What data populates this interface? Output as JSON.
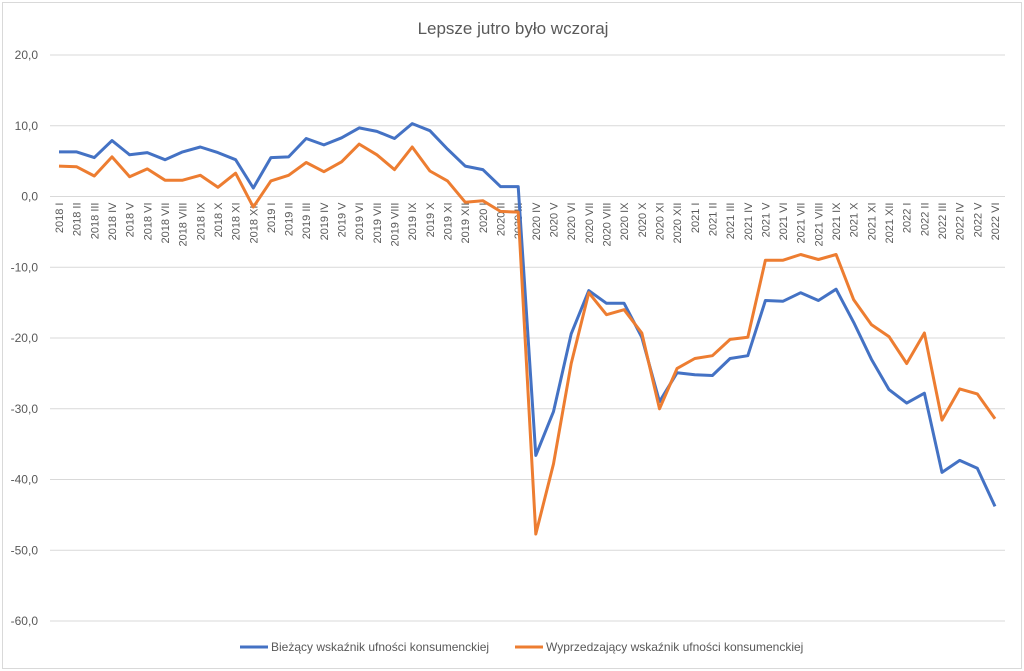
{
  "chart_data": {
    "type": "line",
    "title": "Lepsze jutro było wczoraj",
    "xlabel": "",
    "ylabel": "",
    "ylim": [
      -60,
      20
    ],
    "yticks": [
      20,
      10,
      0,
      -10,
      -20,
      -30,
      -40,
      -50,
      -60
    ],
    "ytick_labels": [
      "20,0",
      "10,0",
      "0,0",
      "-10,0",
      "-20,0",
      "-30,0",
      "-40,0",
      "-50,0",
      "-60,0"
    ],
    "grid": true,
    "legend_position": "bottom",
    "categories": [
      "2018 I",
      "2018 II",
      "2018 III",
      "2018 IV",
      "2018 V",
      "2018 VI",
      "2018 VII",
      "2018 VIII",
      "2018 IX",
      "2018 X",
      "2018 XI",
      "2018 XII",
      "2019 I",
      "2019 II",
      "2019 III",
      "2019 IV",
      "2019 V",
      "2019 VI",
      "2019 VII",
      "2019 VIII",
      "2019 IX",
      "2019 X",
      "2019 XI",
      "2019 XII",
      "2020 I",
      "2020 II",
      "2020 III",
      "2020 IV",
      "2020 V",
      "2020 VI",
      "2020 VII",
      "2020 VIII",
      "2020 IX",
      "2020 X",
      "2020 XI",
      "2020 XII",
      "2021 I",
      "2021 II",
      "2021 III",
      "2021 IV",
      "2021 V",
      "2021 VI",
      "2021 VII",
      "2021 VIII",
      "2021 IX",
      "2021 X",
      "2021 XI",
      "2021 XII",
      "2022 I",
      "2022 II",
      "2022 III",
      "2022 IV",
      "2022 V",
      "2022 VI"
    ],
    "series": [
      {
        "name": "Bieżący wskaźnik ufności konsumenckiej",
        "color": "#4472c4",
        "values": [
          6.3,
          6.3,
          5.5,
          7.9,
          5.9,
          6.2,
          5.2,
          6.3,
          7.0,
          6.2,
          5.2,
          1.2,
          5.5,
          5.6,
          8.2,
          7.3,
          8.3,
          9.7,
          9.2,
          8.2,
          10.3,
          9.3,
          6.7,
          4.3,
          3.8,
          1.4,
          1.4,
          -36.6,
          -30.4,
          -19.4,
          -13.3,
          -15.1,
          -15.1,
          -19.9,
          -29.0,
          -24.9,
          -25.2,
          -25.3,
          -22.9,
          -22.5,
          -14.7,
          -14.8,
          -13.6,
          -14.7,
          -13.1,
          -17.8,
          -23.0,
          -27.3,
          -29.2,
          -27.8,
          -39.0,
          -37.3,
          -38.4,
          -43.8
        ]
      },
      {
        "name": "Wyprzedzający wskaźnik ufności konsumenckiej",
        "color": "#ed7d31",
        "values": [
          4.3,
          4.2,
          2.9,
          5.6,
          2.8,
          3.9,
          2.3,
          2.3,
          3.0,
          1.3,
          3.3,
          -1.5,
          2.2,
          3.0,
          4.8,
          3.5,
          4.9,
          7.4,
          5.9,
          3.8,
          7.0,
          3.6,
          2.2,
          -0.8,
          -0.6,
          -2.1,
          -2.2,
          -47.7,
          -37.8,
          -23.6,
          -13.6,
          -16.7,
          -16.0,
          -19.3,
          -30.0,
          -24.3,
          -22.9,
          -22.5,
          -20.2,
          -19.9,
          -9.0,
          -9.0,
          -8.2,
          -8.9,
          -8.2,
          -14.6,
          -18.1,
          -19.8,
          -23.6,
          -19.3,
          -31.6,
          -27.2,
          -27.9,
          -31.4
        ]
      }
    ]
  }
}
